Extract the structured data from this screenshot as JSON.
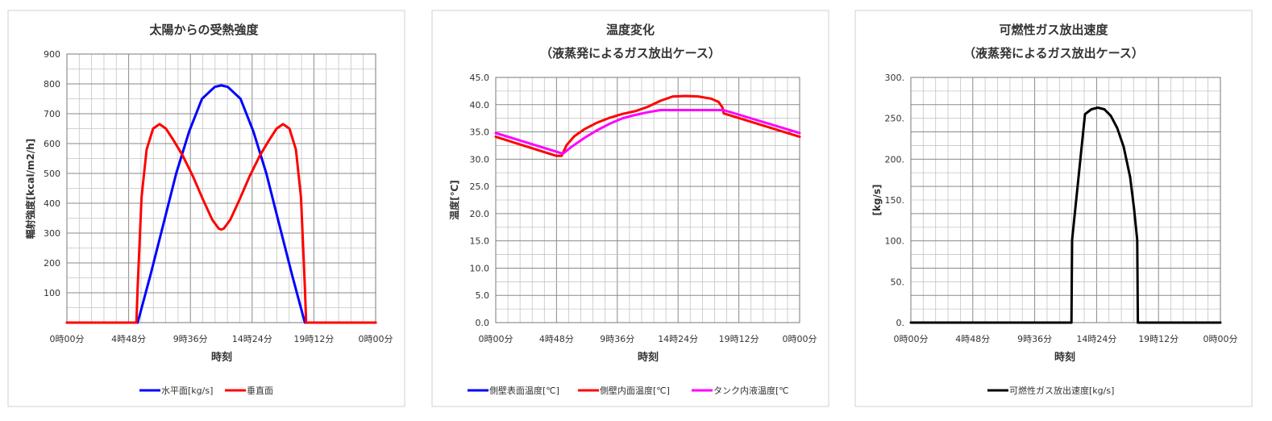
{
  "chart_data": [
    {
      "type": "line",
      "title": "太陽からの受熱強度",
      "xlabel": "時刻",
      "ylabel": "輻射強度[kcal/m2/h]",
      "ylim": [
        0,
        900
      ],
      "xlim": [
        0,
        24
      ],
      "x_tick_labels": [
        "0時00分",
        "4時48分",
        "9時36分",
        "14時24分",
        "19時12分",
        "0時00分"
      ],
      "y_tick_labels": [
        "",
        "100",
        "200",
        "300",
        "400",
        "500",
        "600",
        "700",
        "800",
        "900"
      ],
      "grid": true,
      "legend_position": "bottom",
      "series": [
        {
          "name": "水平面[kg/s]",
          "color": "#0000FF",
          "x": [
            0,
            5.5,
            6.5,
            7.5,
            8.5,
            9.5,
            10.5,
            11.5,
            12,
            12.5,
            13.5,
            14.5,
            15.5,
            16.5,
            17.5,
            18.5,
            24
          ],
          "y": [
            0,
            0,
            160,
            330,
            500,
            640,
            750,
            790,
            795,
            790,
            750,
            640,
            500,
            330,
            160,
            0,
            0
          ]
        },
        {
          "name": "垂直面",
          "color": "#FF0000",
          "x": [
            0,
            5.4,
            5.5,
            5.8,
            6.2,
            6.7,
            7.2,
            7.7,
            8.3,
            9,
            9.8,
            10.6,
            11.3,
            11.8,
            12,
            12.2,
            12.7,
            13.4,
            14.2,
            15,
            15.7,
            16.3,
            16.8,
            17.3,
            17.8,
            18.2,
            18.5,
            18.6,
            24
          ],
          "y": [
            0,
            0,
            120,
            420,
            580,
            650,
            665,
            650,
            610,
            560,
            490,
            410,
            345,
            315,
            312,
            315,
            345,
            410,
            490,
            560,
            610,
            650,
            665,
            650,
            580,
            420,
            120,
            0,
            0
          ]
        }
      ]
    },
    {
      "type": "line",
      "title": "温度変化",
      "subtitle": "（液蒸発によるガス放出ケース）",
      "xlabel": "時刻",
      "ylabel": "温度[℃]",
      "ylim": [
        0,
        45
      ],
      "xlim": [
        0,
        24
      ],
      "x_tick_labels": [
        "0時00分",
        "4時48分",
        "9時36分",
        "14時24分",
        "19時12分",
        "0時00分"
      ],
      "y_tick_labels": [
        "0.0",
        "5.0",
        "10.0",
        "15.0",
        "20.0",
        "25.0",
        "30.0",
        "35.0",
        "40.0",
        "45.0"
      ],
      "grid": true,
      "legend_position": "bottom",
      "series": [
        {
          "name": "側壁表面温度[℃]",
          "color": "#0000FF",
          "x": [],
          "y": []
        },
        {
          "name": "側壁内面温度[℃]",
          "color": "#FF0000",
          "x": [
            0,
            4.8,
            5.2,
            5.6,
            6.2,
            7,
            8,
            9,
            10,
            11,
            12,
            13,
            14,
            15,
            16,
            17,
            17.6,
            17.9,
            18,
            24
          ],
          "y": [
            34.1,
            30.6,
            30.6,
            32.6,
            34.2,
            35.5,
            36.7,
            37.6,
            38.3,
            38.8,
            39.6,
            40.7,
            41.5,
            41.6,
            41.5,
            41.1,
            40.5,
            39.5,
            38.4,
            34.1
          ]
        },
        {
          "name": "タンク内液温度[℃",
          "color": "#FF00FF",
          "x": [
            0,
            5.3,
            6,
            7,
            8,
            9,
            10,
            11,
            12,
            13,
            18,
            24
          ],
          "y": [
            34.8,
            31.0,
            32.3,
            33.9,
            35.3,
            36.5,
            37.5,
            38.1,
            38.6,
            39.0,
            39.0,
            34.8
          ]
        }
      ]
    },
    {
      "type": "line",
      "title": "可燃性ガス放出速度",
      "subtitle": "（液蒸発によるガス放出ケース）",
      "xlabel": "時刻",
      "ylabel": "[kg/s]",
      "ylim": [
        0,
        300
      ],
      "xlim": [
        0,
        24
      ],
      "x_tick_labels": [
        "0時00分",
        "4時48分",
        "9時36分",
        "14時24分",
        "19時12分",
        "0時00分"
      ],
      "y_tick_labels": [
        "0.",
        "50.",
        "100.",
        "150.",
        "200.",
        "250.",
        "300."
      ],
      "grid": true,
      "legend_position": "bottom",
      "series": [
        {
          "name": "可燃性ガス放出速度[kg/s]",
          "color": "#000000",
          "x": [
            0,
            12.45,
            12.5,
            13,
            13.5,
            14,
            14.5,
            15,
            15.5,
            16,
            16.5,
            17,
            17.3,
            17.55,
            17.6,
            24
          ],
          "y": [
            0,
            0,
            101,
            178,
            255,
            261,
            263,
            261,
            253,
            238,
            215,
            178,
            140,
            101,
            0,
            0
          ]
        }
      ]
    }
  ]
}
